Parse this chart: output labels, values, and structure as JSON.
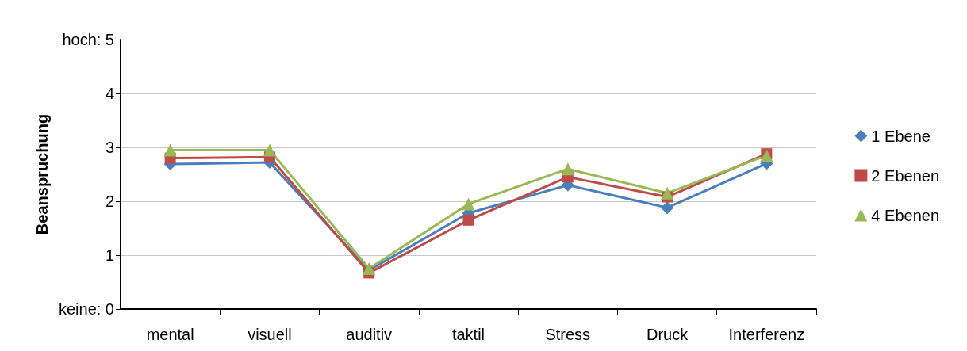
{
  "chart_data": {
    "type": "line",
    "ylabel": "Beanspruchung",
    "categories": [
      "mental",
      "visuell",
      "auditiv",
      "taktil",
      "Stress",
      "Druck",
      "Interferenz"
    ],
    "series": [
      {
        "name": "1 Ebene",
        "color": "#4a7ebb",
        "marker": "diamond",
        "values": [
          2.69,
          2.72,
          0.72,
          1.78,
          2.3,
          1.88,
          2.7
        ]
      },
      {
        "name": "2 Ebenen",
        "color": "#be4b48",
        "marker": "square",
        "values": [
          2.8,
          2.82,
          0.67,
          1.65,
          2.45,
          2.08,
          2.88
        ]
      },
      {
        "name": "4 Ebenen",
        "color": "#98b954",
        "marker": "triangle",
        "values": [
          2.95,
          2.95,
          0.75,
          1.95,
          2.6,
          2.15,
          2.85
        ]
      }
    ],
    "ylim": [
      0,
      5
    ],
    "yticks": [
      {
        "value": 0,
        "label": "keine: 0"
      },
      1,
      2,
      3,
      4,
      {
        "value": 5,
        "label": "hoch: 5"
      }
    ],
    "grid": "y",
    "legend": "right"
  }
}
